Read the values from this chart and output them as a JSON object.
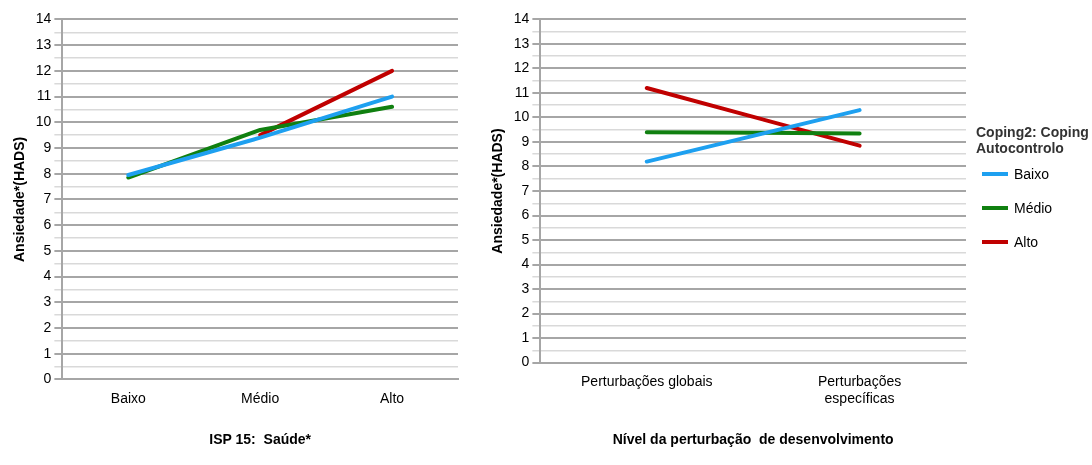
{
  "chart_data": [
    {
      "type": "line",
      "xlabel": "ISP 15:  Saúde*",
      "ylabel": "Ansiedade*(HADS)",
      "categories": [
        "Baixo",
        "Médio",
        "Alto"
      ],
      "ylim": [
        0,
        14
      ],
      "yticks": [
        0,
        {
          "value": 0.5,
          "label": null
        },
        1,
        {
          "value": 1.5,
          "label": null
        },
        2,
        {
          "value": 2.5,
          "label": null
        },
        3,
        {
          "value": 3.5,
          "label": null
        },
        4,
        {
          "value": 4.5,
          "label": null
        },
        5,
        {
          "value": 5.5,
          "label": null
        },
        6,
        {
          "value": 6.5,
          "label": null
        },
        7,
        {
          "value": 7.5,
          "label": null
        },
        8,
        {
          "value": 8.5,
          "label": null
        },
        9,
        {
          "value": 9.5,
          "label": null
        },
        10,
        {
          "value": 10.5,
          "label": null
        },
        11,
        {
          "value": 11.5,
          "label": null
        },
        12,
        {
          "value": 12.5,
          "label": null
        },
        13,
        {
          "value": 13.5,
          "label": null
        },
        14
      ],
      "grid": "y",
      "legend": false,
      "marker": "none",
      "series": [
        {
          "color": "#1ea0f0",
          "values": [
            7.95,
            9.4,
            11.0
          ]
        },
        {
          "color": "#108010",
          "values": [
            7.85,
            9.7,
            10.6
          ]
        },
        {
          "color": "#c00000",
          "values": [
            null,
            9.5,
            12.0
          ]
        }
      ]
    },
    {
      "type": "line",
      "xlabel": "Nível da perturbação  de desenvolvimento",
      "ylabel": "Ansiedade*(HADS)",
      "legend_title": "Coping2: Coping Autocontrolo",
      "categories": [
        "Perturbações globais",
        "Perturbações específicas"
      ],
      "ylim": [
        0,
        14
      ],
      "yticks": [
        0,
        {
          "value": 0.5,
          "label": null
        },
        1,
        {
          "value": 1.5,
          "label": null
        },
        2,
        {
          "value": 2.5,
          "label": null
        },
        3,
        {
          "value": 3.5,
          "label": null
        },
        4,
        {
          "value": 4.5,
          "label": null
        },
        5,
        {
          "value": 5.5,
          "label": null
        },
        6,
        {
          "value": 6.5,
          "label": null
        },
        7,
        {
          "value": 7.5,
          "label": null
        },
        8,
        {
          "value": 8.5,
          "label": null
        },
        9,
        {
          "value": 9.5,
          "label": null
        },
        10,
        {
          "value": 10.5,
          "label": null
        },
        11,
        {
          "value": 11.5,
          "label": null
        },
        12,
        {
          "value": 12.5,
          "label": null
        },
        13,
        {
          "value": 13.5,
          "label": null
        },
        14
      ],
      "grid": "y",
      "legend": "right",
      "marker": "none",
      "series": [
        {
          "name": "Baixo",
          "color": "#1ea0f0",
          "values": [
            8.2,
            10.3
          ]
        },
        {
          "name": "Médio",
          "color": "#108010",
          "values": [
            9.4,
            9.35
          ]
        },
        {
          "name": "Alto",
          "color": "#c00000",
          "values": [
            11.2,
            8.85
          ]
        }
      ]
    }
  ]
}
